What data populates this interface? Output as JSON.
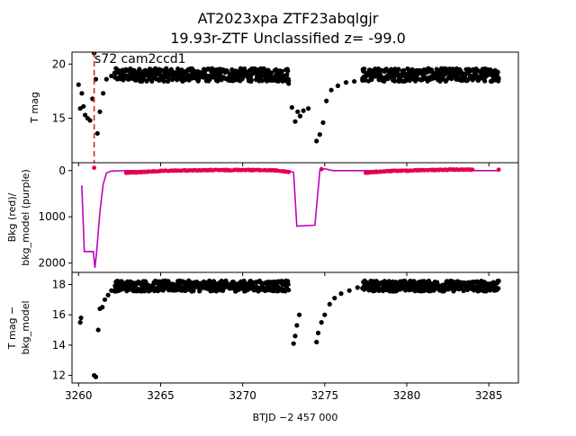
{
  "figure": {
    "title_line1": "AT2023xpa  ZTF23abqlgjr",
    "title_line2": "19.93r-ZTF Unclassified z= -99.0",
    "annotation": "s72 cam2ccd1",
    "marker_x": 3260.95,
    "colors": {
      "points": "#000000",
      "bkg_red": "#e6004c",
      "bkg_model_purple": "#c000c0",
      "marker_red": "#d62728"
    }
  },
  "chart_data": [
    {
      "type": "scatter",
      "panel": "top",
      "ylabel": "T mag",
      "xlim": [
        3259.6,
        3286.8
      ],
      "ylim": [
        21.1,
        10.9
      ],
      "y_inverted": true,
      "yticks": [
        15,
        20
      ],
      "segments": [
        {
          "x": [
            3260.0,
            3260.1,
            3260.2,
            3260.3,
            3260.4,
            3260.55,
            3260.7,
            3260.85,
            3260.95,
            3261.05,
            3261.15,
            3261.3,
            3261.5,
            3261.7,
            3262.0
          ],
          "y": [
            18.1,
            15.9,
            17.3,
            16.1,
            15.3,
            15.0,
            14.8,
            16.8,
            21.0,
            18.6,
            13.6,
            15.6,
            17.3,
            18.6,
            18.9
          ]
        },
        {
          "x_start": 3262.2,
          "x_end": 3272.8,
          "y_center": 19.0,
          "y_spread": 0.6
        },
        {
          "x": [
            3272.8,
            3273.0,
            3273.2,
            3273.35,
            3273.5,
            3273.7,
            3274.0
          ],
          "y": [
            18.2,
            16.0,
            14.7,
            15.6,
            15.2,
            15.7,
            15.9
          ]
        },
        {
          "x": [
            3274.5,
            3274.7,
            3274.9,
            3275.1,
            3275.4,
            3275.8,
            3276.3,
            3276.8,
            3277.3
          ],
          "y": [
            12.9,
            13.5,
            14.6,
            16.6,
            17.6,
            18.0,
            18.3,
            18.4,
            18.5
          ]
        },
        {
          "x_start": 3277.3,
          "x_end": 3285.6,
          "y_center": 19.0,
          "y_spread": 0.6
        }
      ]
    },
    {
      "type": "line",
      "panel": "middle",
      "ylabel": "Bkg (red)/\nbkg_model (purple)",
      "xlim": [
        3259.6,
        3286.8
      ],
      "ylim": [
        -170,
        2200
      ],
      "yticks": [
        0,
        1000,
        2000
      ],
      "series": [
        {
          "color": "purple",
          "x": [
            3260.2,
            3260.35,
            3260.45,
            3260.9,
            3261.0,
            3261.1,
            3261.3,
            3261.5,
            3261.7,
            3262.0,
            3262.5,
            3263.0,
            3272.8,
            3273.1,
            3273.3,
            3274.4,
            3274.7,
            3275.0,
            3275.5,
            3277.0,
            3285.6
          ],
          "y": [
            320,
            1750,
            1750,
            1750,
            2100,
            1750,
            900,
            300,
            50,
            10,
            5,
            0,
            0,
            40,
            1200,
            1180,
            0,
            -40,
            0,
            0,
            0
          ]
        },
        {
          "color": "red",
          "x": [
            3260.95,
            3262.9,
            3263.5,
            3264.0,
            3264.5,
            3265.0,
            3266.0,
            3267.0,
            3268.0,
            3269.0,
            3270.0,
            3271.0,
            3272.0,
            3272.8,
            3274.8,
            3277.5,
            3278.0,
            3279.0,
            3280.0,
            3281.0,
            3282.0,
            3283.0,
            3284.0,
            3285.6
          ],
          "y": [
            -60,
            50,
            40,
            30,
            20,
            10,
            0,
            -5,
            -10,
            -10,
            -15,
            -10,
            -5,
            30,
            -30,
            50,
            30,
            10,
            0,
            -10,
            -15,
            -20,
            -20,
            -20
          ]
        }
      ]
    },
    {
      "type": "scatter",
      "panel": "bottom",
      "ylabel": "T mag −\nbkg_model",
      "xlabel": "BTJD −2 457 000",
      "xlim": [
        3259.6,
        3286.8
      ],
      "ylim": [
        18.8,
        11.5
      ],
      "y_inverted": true,
      "yticks": [
        12,
        14,
        16,
        18
      ],
      "xticks": [
        3260,
        3265,
        3270,
        3275,
        3280,
        3285
      ],
      "segments": [
        {
          "x": [
            3260.1,
            3260.15,
            3260.95,
            3261.05,
            3261.2,
            3261.3,
            3261.45,
            3261.6,
            3261.8,
            3262.0
          ],
          "y": [
            15.5,
            15.8,
            12.0,
            11.9,
            15.0,
            16.4,
            16.5,
            17.0,
            17.3,
            17.6
          ]
        },
        {
          "x_start": 3262.2,
          "x_end": 3272.8,
          "y_center": 17.9,
          "y_spread": 0.35
        },
        {
          "x": [
            3273.1,
            3273.2,
            3273.3,
            3273.45
          ],
          "y": [
            14.1,
            14.6,
            15.3,
            16.0
          ]
        },
        {
          "x": [
            3274.5,
            3274.6,
            3274.8,
            3275.0,
            3275.3,
            3275.6,
            3276.0,
            3276.5,
            3277.0
          ],
          "y": [
            14.2,
            14.8,
            15.5,
            16.0,
            16.7,
            17.1,
            17.4,
            17.6,
            17.8
          ]
        },
        {
          "x_start": 3277.3,
          "x_end": 3285.6,
          "y_center": 17.9,
          "y_spread": 0.35
        }
      ]
    }
  ]
}
